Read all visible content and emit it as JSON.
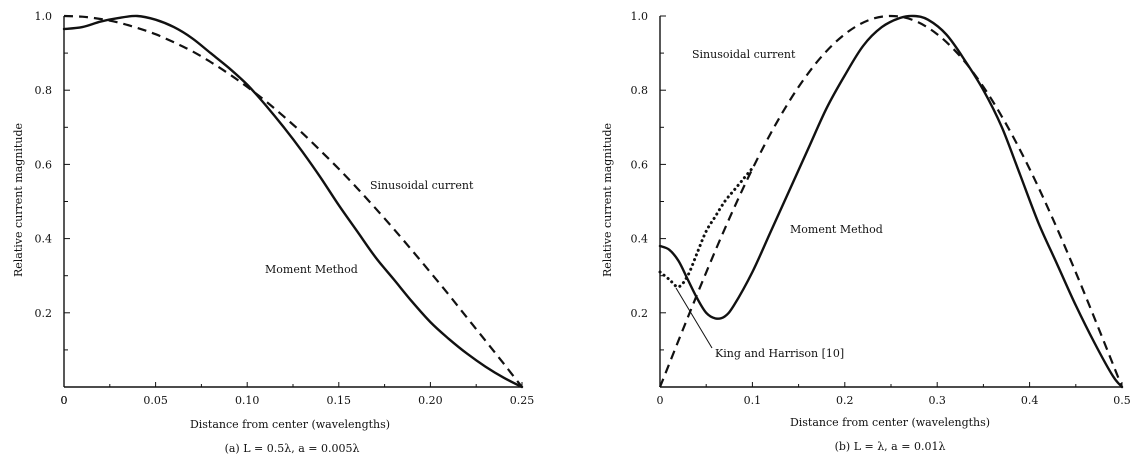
{
  "chart_data": [
    {
      "type": "line",
      "xlabel": "Distance from center (wavelengths)",
      "ylabel": "Relative current magnitude",
      "caption": "(a) L = 0.5λ, a = 0.005λ",
      "xlim": [
        0,
        0.25
      ],
      "ylim": [
        0,
        1.0
      ],
      "xticks": [
        0,
        0.05,
        0.1,
        0.15,
        0.2,
        0.25
      ],
      "xtick_labels": [
        "0",
        "0.05",
        "0.10",
        "0.15",
        "0.20",
        "0.25"
      ],
      "yticks": [
        0.2,
        0.4,
        0.6,
        0.8,
        1.0
      ],
      "ytick_labels": [
        "0.2",
        "0.4",
        "0.6",
        "0.8",
        "1.0"
      ],
      "series": [
        {
          "name": "Moment Method",
          "style": "solid",
          "x": [
            0,
            0.01,
            0.02,
            0.03,
            0.04,
            0.05,
            0.06,
            0.07,
            0.08,
            0.09,
            0.1,
            0.11,
            0.12,
            0.13,
            0.14,
            0.15,
            0.16,
            0.17,
            0.18,
            0.19,
            0.2,
            0.21,
            0.22,
            0.23,
            0.24,
            0.25
          ],
          "y": [
            0.965,
            0.97,
            0.985,
            0.995,
            1.0,
            0.99,
            0.97,
            0.94,
            0.9,
            0.86,
            0.815,
            0.76,
            0.7,
            0.635,
            0.565,
            0.49,
            0.42,
            0.35,
            0.29,
            0.23,
            0.175,
            0.13,
            0.09,
            0.055,
            0.025,
            0.0
          ]
        },
        {
          "name": "Sinusoidal current",
          "style": "dashed",
          "x": [
            0,
            0.01,
            0.02,
            0.03,
            0.04,
            0.05,
            0.06,
            0.07,
            0.08,
            0.09,
            0.1,
            0.11,
            0.12,
            0.13,
            0.14,
            0.15,
            0.16,
            0.17,
            0.18,
            0.19,
            0.2,
            0.21,
            0.22,
            0.23,
            0.24,
            0.25
          ],
          "y": [
            1.0,
            0.998,
            0.992,
            0.982,
            0.968,
            0.951,
            0.929,
            0.905,
            0.876,
            0.844,
            0.809,
            0.771,
            0.729,
            0.685,
            0.637,
            0.588,
            0.536,
            0.482,
            0.426,
            0.368,
            0.309,
            0.249,
            0.187,
            0.125,
            0.063,
            0.0
          ]
        }
      ],
      "annotations": [
        {
          "text": "Sinusoidal current",
          "series": "Sinusoidal current"
        },
        {
          "text": "Moment Method",
          "series": "Moment Method"
        }
      ]
    },
    {
      "type": "line",
      "xlabel": "Distance from center (wavelengths)",
      "ylabel": "Relative current magnitude",
      "caption": "(b) L = λ, a = 0.01λ",
      "xlim": [
        0,
        0.5
      ],
      "ylim": [
        0,
        1.0
      ],
      "xticks": [
        0,
        0.1,
        0.2,
        0.3,
        0.4,
        0.5
      ],
      "xtick_labels": [
        "0",
        "0.1",
        "0.2",
        "0.3",
        "0.4",
        "0.5"
      ],
      "yticks": [
        0.2,
        0.4,
        0.6,
        0.8,
        1.0
      ],
      "ytick_labels": [
        "0.2",
        "0.4",
        "0.6",
        "0.8",
        "1.0"
      ],
      "series": [
        {
          "name": "Moment Method",
          "style": "solid",
          "x": [
            0,
            0.01,
            0.02,
            0.03,
            0.04,
            0.05,
            0.06,
            0.07,
            0.08,
            0.1,
            0.12,
            0.14,
            0.16,
            0.18,
            0.2,
            0.22,
            0.24,
            0.26,
            0.275,
            0.29,
            0.31,
            0.33,
            0.35,
            0.37,
            0.39,
            0.41,
            0.43,
            0.45,
            0.47,
            0.49,
            0.5
          ],
          "y": [
            0.38,
            0.37,
            0.34,
            0.29,
            0.24,
            0.2,
            0.185,
            0.19,
            0.22,
            0.31,
            0.42,
            0.53,
            0.64,
            0.75,
            0.84,
            0.92,
            0.97,
            0.995,
            1.0,
            0.99,
            0.95,
            0.88,
            0.8,
            0.7,
            0.57,
            0.44,
            0.33,
            0.22,
            0.12,
            0.03,
            0.0
          ]
        },
        {
          "name": "Sinusoidal current",
          "style": "dashed",
          "x": [
            0,
            0.025,
            0.05,
            0.075,
            0.1,
            0.125,
            0.15,
            0.175,
            0.2,
            0.225,
            0.25,
            0.275,
            0.3,
            0.325,
            0.35,
            0.375,
            0.4,
            0.425,
            0.45,
            0.475,
            0.5
          ],
          "y": [
            0.0,
            0.156,
            0.309,
            0.454,
            0.588,
            0.707,
            0.809,
            0.891,
            0.951,
            0.988,
            1.0,
            0.988,
            0.951,
            0.891,
            0.809,
            0.707,
            0.588,
            0.454,
            0.309,
            0.156,
            0.0
          ]
        },
        {
          "name": "King and Harrison [10]",
          "style": "dotted",
          "x": [
            0,
            0.01,
            0.02,
            0.03,
            0.04,
            0.05,
            0.06,
            0.07,
            0.08,
            0.09,
            0.1
          ],
          "y": [
            0.31,
            0.29,
            0.27,
            0.3,
            0.36,
            0.42,
            0.46,
            0.5,
            0.53,
            0.56,
            0.59
          ]
        }
      ],
      "annotations": [
        {
          "text": "Sinusoidal current",
          "series": "Sinusoidal current"
        },
        {
          "text": "Moment Method",
          "series": "Moment Method"
        },
        {
          "text": "King and Harrison [10]",
          "series": "King and Harrison [10]"
        }
      ]
    }
  ]
}
